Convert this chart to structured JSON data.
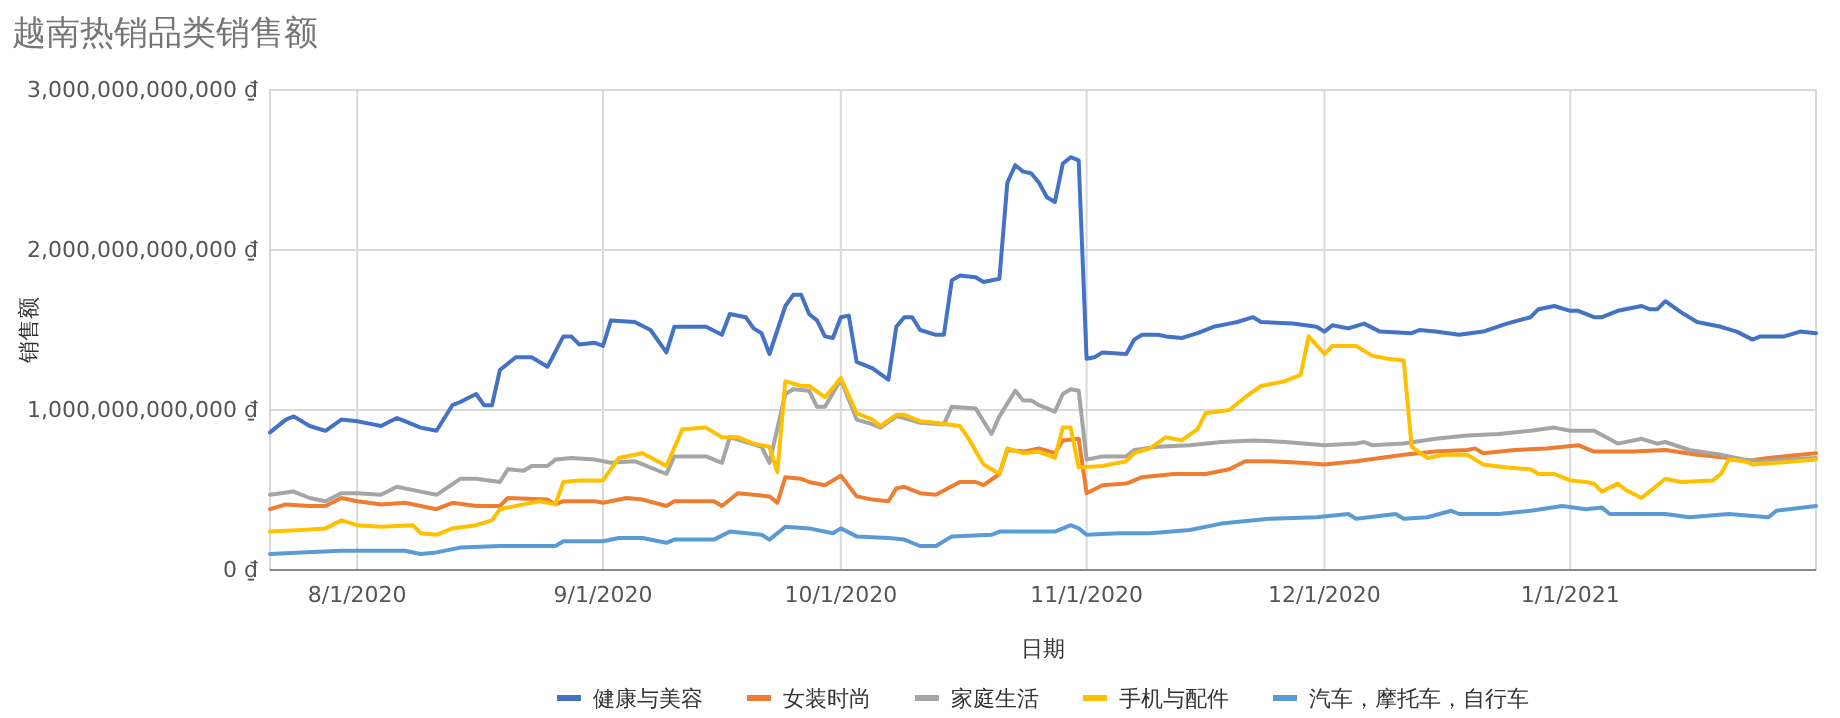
{
  "chart_data": {
    "type": "line",
    "title": "越南热销品类销售额",
    "xlabel": "日期",
    "ylabel": "销售额",
    "xlim": [
      "2020-07-21",
      "2021-02-01"
    ],
    "xticks": [
      {
        "value": "2020-08-01",
        "label": "8/1/2020"
      },
      {
        "value": "2020-09-01",
        "label": "9/1/2020"
      },
      {
        "value": "2020-10-01",
        "label": "10/1/2020"
      },
      {
        "value": "2020-11-01",
        "label": "11/1/2020"
      },
      {
        "value": "2020-12-01",
        "label": "12/1/2020"
      },
      {
        "value": "2021-01-01",
        "label": "1/1/2021"
      }
    ],
    "ylim": [
      0,
      3000000000000.0
    ],
    "yticks": [
      {
        "value": 0,
        "label": "0 ₫"
      },
      {
        "value": 1000000000000.0,
        "label": "1,000,000,000,000 ₫"
      },
      {
        "value": 2000000000000.0,
        "label": "2,000,000,000,000 ₫"
      },
      {
        "value": 3000000000000.0,
        "label": "3,000,000,000,000 ₫"
      }
    ],
    "grid": true,
    "legend": "bottom",
    "marker": "none",
    "line_style": "solid",
    "series": [
      {
        "name": "健康与美容",
        "color": "#4472c4",
        "x": [
          "2020-07-21",
          "2020-07-23",
          "2020-07-24",
          "2020-07-26",
          "2020-07-28",
          "2020-07-30",
          "2020-08-01",
          "2020-08-03",
          "2020-08-04",
          "2020-08-06",
          "2020-08-07",
          "2020-08-09",
          "2020-08-11",
          "2020-08-13",
          "2020-08-14",
          "2020-08-16",
          "2020-08-17",
          "2020-08-18",
          "2020-08-19",
          "2020-08-21",
          "2020-08-23",
          "2020-08-25",
          "2020-08-27",
          "2020-08-28",
          "2020-08-29",
          "2020-08-31",
          "2020-09-01",
          "2020-09-02",
          "2020-09-05",
          "2020-09-07",
          "2020-09-09",
          "2020-09-10",
          "2020-09-14",
          "2020-09-16",
          "2020-09-17",
          "2020-09-19",
          "2020-09-20",
          "2020-09-21",
          "2020-09-22",
          "2020-09-24",
          "2020-09-25",
          "2020-09-26",
          "2020-09-27",
          "2020-09-28",
          "2020-09-29",
          "2020-09-30",
          "2020-10-01",
          "2020-10-02",
          "2020-10-03",
          "2020-10-04",
          "2020-10-05",
          "2020-10-07",
          "2020-10-08",
          "2020-10-09",
          "2020-10-10",
          "2020-10-11",
          "2020-10-13",
          "2020-10-14",
          "2020-10-15",
          "2020-10-16",
          "2020-10-18",
          "2020-10-19",
          "2020-10-21",
          "2020-10-22",
          "2020-10-23",
          "2020-10-24",
          "2020-10-25",
          "2020-10-26",
          "2020-10-27",
          "2020-10-28",
          "2020-10-29",
          "2020-10-30",
          "2020-10-31",
          "2020-11-01",
          "2020-11-02",
          "2020-11-03",
          "2020-11-06",
          "2020-11-07",
          "2020-11-08",
          "2020-11-10",
          "2020-11-11",
          "2020-11-13",
          "2020-11-15",
          "2020-11-17",
          "2020-11-19",
          "2020-11-20",
          "2020-11-22",
          "2020-11-23",
          "2020-11-27",
          "2020-11-30",
          "2020-12-01",
          "2020-12-02",
          "2020-12-04",
          "2020-12-06",
          "2020-12-08",
          "2020-12-12",
          "2020-12-13",
          "2020-12-15",
          "2020-12-18",
          "2020-12-21",
          "2020-12-24",
          "2020-12-27",
          "2020-12-28",
          "2020-12-30",
          "2021-01-01",
          "2021-01-02",
          "2021-01-04",
          "2021-01-05",
          "2021-01-07",
          "2021-01-10",
          "2021-01-11",
          "2021-01-12",
          "2021-01-13",
          "2021-01-15",
          "2021-01-17",
          "2021-01-20",
          "2021-01-22",
          "2021-01-24",
          "2021-01-25",
          "2021-01-28",
          "2021-01-30",
          "2021-02-01"
        ],
        "values": [
          860000000000.0,
          940000000000.0,
          960000000000.0,
          900000000000.0,
          870000000000.0,
          940000000000.0,
          930000000000.0,
          910000000000.0,
          900000000000.0,
          950000000000.0,
          930000000000.0,
          890000000000.0,
          870000000000.0,
          1030000000000.0,
          1050000000000.0,
          1100000000000.0,
          1030000000000.0,
          1030000000000.0,
          1250000000000.0,
          1330000000000.0,
          1330000000000.0,
          1270000000000.0,
          1460000000000.0,
          1460000000000.0,
          1410000000000.0,
          1420000000000.0,
          1400000000000.0,
          1560000000000.0,
          1550000000000.0,
          1500000000000.0,
          1360000000000.0,
          1520000000000.0,
          1520000000000.0,
          1470000000000.0,
          1600000000000.0,
          1580000000000.0,
          1510000000000.0,
          1480000000000.0,
          1350000000000.0,
          1650000000000.0,
          1720000000000.0,
          1720000000000.0,
          1600000000000.0,
          1560000000000.0,
          1460000000000.0,
          1450000000000.0,
          1580000000000.0,
          1590000000000.0,
          1300000000000.0,
          1280000000000.0,
          1260000000000.0,
          1190000000000.0,
          1520000000000.0,
          1580000000000.0,
          1580000000000.0,
          1500000000000.0,
          1470000000000.0,
          1470000000000.0,
          1810000000000.0,
          1840000000000.0,
          1830000000000.0,
          1800000000000.0,
          1820000000000.0,
          2420000000000.0,
          2530000000000.0,
          2490000000000.0,
          2480000000000.0,
          2420000000000.0,
          2330000000000.0,
          2300000000000.0,
          2540000000000.0,
          2580000000000.0,
          2560000000000.0,
          1320000000000.0,
          1330000000000.0,
          1360000000000.0,
          1350000000000.0,
          1440000000000.0,
          1470000000000.0,
          1470000000000.0,
          1460000000000.0,
          1450000000000.0,
          1480000000000.0,
          1520000000000.0,
          1540000000000.0,
          1550000000000.0,
          1580000000000.0,
          1550000000000.0,
          1540000000000.0,
          1520000000000.0,
          1490000000000.0,
          1530000000000.0,
          1510000000000.0,
          1540000000000.0,
          1490000000000.0,
          1480000000000.0,
          1500000000000.0,
          1490000000000.0,
          1470000000000.0,
          1490000000000.0,
          1540000000000.0,
          1580000000000.0,
          1630000000000.0,
          1650000000000.0,
          1620000000000.0,
          1620000000000.0,
          1580000000000.0,
          1580000000000.0,
          1620000000000.0,
          1650000000000.0,
          1630000000000.0,
          1630000000000.0,
          1680000000000.0,
          1610000000000.0,
          1550000000000.0,
          1520000000000.0,
          1490000000000.0,
          1440000000000.0,
          1460000000000.0,
          1460000000000.0,
          1490000000000.0,
          1480000000000.0
        ]
      },
      {
        "name": "女装时尚",
        "color": "#ed7d31",
        "x": [
          "2020-07-21",
          "2020-07-23",
          "2020-07-26",
          "2020-07-28",
          "2020-07-30",
          "2020-08-01",
          "2020-08-04",
          "2020-08-07",
          "2020-08-11",
          "2020-08-13",
          "2020-08-16",
          "2020-08-19",
          "2020-08-20",
          "2020-08-25",
          "2020-08-26",
          "2020-08-27",
          "2020-08-31",
          "2020-09-01",
          "2020-09-04",
          "2020-09-06",
          "2020-09-09",
          "2020-09-10",
          "2020-09-15",
          "2020-09-16",
          "2020-09-18",
          "2020-09-20",
          "2020-09-22",
          "2020-09-23",
          "2020-09-24",
          "2020-09-26",
          "2020-09-27",
          "2020-09-29",
          "2020-10-01",
          "2020-10-03",
          "2020-10-05",
          "2020-10-07",
          "2020-10-08",
          "2020-10-09",
          "2020-10-11",
          "2020-10-13",
          "2020-10-16",
          "2020-10-18",
          "2020-10-19",
          "2020-10-21",
          "2020-10-22",
          "2020-10-24",
          "2020-10-26",
          "2020-10-28",
          "2020-10-29",
          "2020-10-31",
          "2020-11-01",
          "2020-11-03",
          "2020-11-06",
          "2020-11-08",
          "2020-11-12",
          "2020-11-16",
          "2020-11-19",
          "2020-11-21",
          "2020-11-24",
          "2020-11-28",
          "2020-12-01",
          "2020-12-05",
          "2020-12-08",
          "2020-12-11",
          "2020-12-15",
          "2020-12-19",
          "2020-12-20",
          "2020-12-21",
          "2020-12-25",
          "2020-12-29",
          "2021-01-02",
          "2021-01-04",
          "2021-01-09",
          "2021-01-13",
          "2021-01-17",
          "2021-01-21",
          "2021-01-23",
          "2021-01-26",
          "2021-01-30",
          "2021-02-01"
        ],
        "values": [
          380000000000.0,
          410000000000.0,
          400000000000.0,
          400000000000.0,
          450000000000.0,
          430000000000.0,
          410000000000.0,
          420000000000.0,
          380000000000.0,
          420000000000.0,
          400000000000.0,
          400000000000.0,
          450000000000.0,
          440000000000.0,
          410000000000.0,
          430000000000.0,
          430000000000.0,
          420000000000.0,
          450000000000.0,
          440000000000.0,
          400000000000.0,
          430000000000.0,
          430000000000.0,
          400000000000.0,
          480000000000.0,
          470000000000.0,
          460000000000.0,
          420000000000.0,
          580000000000.0,
          570000000000.0,
          550000000000.0,
          530000000000.0,
          590000000000.0,
          460000000000.0,
          440000000000.0,
          430000000000.0,
          510000000000.0,
          520000000000.0,
          480000000000.0,
          470000000000.0,
          550000000000.0,
          550000000000.0,
          530000000000.0,
          600000000000.0,
          750000000000.0,
          740000000000.0,
          760000000000.0,
          730000000000.0,
          810000000000.0,
          820000000000.0,
          480000000000.0,
          530000000000.0,
          540000000000.0,
          580000000000.0,
          600000000000.0,
          600000000000.0,
          630000000000.0,
          680000000000.0,
          680000000000.0,
          670000000000.0,
          660000000000.0,
          680000000000.0,
          700000000000.0,
          720000000000.0,
          740000000000.0,
          750000000000.0,
          760000000000.0,
          730000000000.0,
          750000000000.0,
          760000000000.0,
          780000000000.0,
          740000000000.0,
          740000000000.0,
          750000000000.0,
          720000000000.0,
          700000000000.0,
          680000000000.0,
          700000000000.0,
          720000000000.0,
          730000000000.0
        ]
      },
      {
        "name": "家庭生活",
        "color": "#a5a5a5",
        "x": [
          "2020-07-21",
          "2020-07-24",
          "2020-07-26",
          "2020-07-28",
          "2020-07-30",
          "2020-08-01",
          "2020-08-04",
          "2020-08-06",
          "2020-08-09",
          "2020-08-11",
          "2020-08-14",
          "2020-08-16",
          "2020-08-19",
          "2020-08-20",
          "2020-08-22",
          "2020-08-23",
          "2020-08-25",
          "2020-08-26",
          "2020-08-28",
          "2020-08-31",
          "2020-09-02",
          "2020-09-05",
          "2020-09-09",
          "2020-09-10",
          "2020-09-14",
          "2020-09-16",
          "2020-09-17",
          "2020-09-19",
          "2020-09-21",
          "2020-09-22",
          "2020-09-24",
          "2020-09-25",
          "2020-09-27",
          "2020-09-28",
          "2020-09-29",
          "2020-10-01",
          "2020-10-03",
          "2020-10-05",
          "2020-10-06",
          "2020-10-08",
          "2020-10-09",
          "2020-10-11",
          "2020-10-14",
          "2020-10-15",
          "2020-10-18",
          "2020-10-20",
          "2020-10-21",
          "2020-10-23",
          "2020-10-24",
          "2020-10-25",
          "2020-10-26",
          "2020-10-28",
          "2020-10-29",
          "2020-10-30",
          "2020-10-31",
          "2020-11-01",
          "2020-11-03",
          "2020-11-06",
          "2020-11-07",
          "2020-11-10",
          "2020-11-14",
          "2020-11-18",
          "2020-11-22",
          "2020-11-26",
          "2020-12-01",
          "2020-12-05",
          "2020-12-06",
          "2020-12-07",
          "2020-12-11",
          "2020-12-15",
          "2020-12-19",
          "2020-12-23",
          "2020-12-27",
          "2020-12-30",
          "2021-01-01",
          "2021-01-04",
          "2021-01-07",
          "2021-01-10",
          "2021-01-12",
          "2021-01-13",
          "2021-01-16",
          "2021-01-20",
          "2021-01-23",
          "2021-01-25",
          "2021-01-28",
          "2021-02-01"
        ],
        "values": [
          470000000000.0,
          490000000000.0,
          450000000000.0,
          430000000000.0,
          480000000000.0,
          480000000000.0,
          470000000000.0,
          520000000000.0,
          490000000000.0,
          470000000000.0,
          570000000000.0,
          570000000000.0,
          550000000000.0,
          630000000000.0,
          620000000000.0,
          650000000000.0,
          650000000000.0,
          690000000000.0,
          700000000000.0,
          690000000000.0,
          670000000000.0,
          680000000000.0,
          600000000000.0,
          710000000000.0,
          710000000000.0,
          670000000000.0,
          830000000000.0,
          800000000000.0,
          770000000000.0,
          670000000000.0,
          1100000000000.0,
          1130000000000.0,
          1120000000000.0,
          1020000000000.0,
          1020000000000.0,
          1190000000000.0,
          940000000000.0,
          910000000000.0,
          890000000000.0,
          960000000000.0,
          950000000000.0,
          920000000000.0,
          910000000000.0,
          1020000000000.0,
          1010000000000.0,
          850000000000.0,
          960000000000.0,
          1120000000000.0,
          1060000000000.0,
          1060000000000.0,
          1030000000000.0,
          990000000000.0,
          1100000000000.0,
          1130000000000.0,
          1120000000000.0,
          690000000000.0,
          710000000000.0,
          710000000000.0,
          750000000000.0,
          770000000000.0,
          780000000000.0,
          800000000000.0,
          810000000000.0,
          800000000000.0,
          780000000000.0,
          790000000000.0,
          800000000000.0,
          780000000000.0,
          790000000000.0,
          820000000000.0,
          840000000000.0,
          850000000000.0,
          870000000000.0,
          890000000000.0,
          870000000000.0,
          870000000000.0,
          790000000000.0,
          820000000000.0,
          790000000000.0,
          800000000000.0,
          750000000000.0,
          720000000000.0,
          690000000000.0,
          680000000000.0,
          690000000000.0,
          700000000000.0
        ]
      },
      {
        "name": "手机与配件",
        "color": "#ffc000",
        "x": [
          "2020-07-21",
          "2020-07-25",
          "2020-07-28",
          "2020-07-30",
          "2020-08-01",
          "2020-08-04",
          "2020-08-08",
          "2020-08-09",
          "2020-08-11",
          "2020-08-13",
          "2020-08-16",
          "2020-08-18",
          "2020-08-19",
          "2020-08-22",
          "2020-08-24",
          "2020-08-26",
          "2020-08-27",
          "2020-08-29",
          "2020-09-01",
          "2020-09-03",
          "2020-09-06",
          "2020-09-09",
          "2020-09-11",
          "2020-09-14",
          "2020-09-16",
          "2020-09-18",
          "2020-09-20",
          "2020-09-22",
          "2020-09-23",
          "2020-09-24",
          "2020-09-26",
          "2020-09-27",
          "2020-09-29",
          "2020-10-01",
          "2020-10-03",
          "2020-10-05",
          "2020-10-06",
          "2020-10-08",
          "2020-10-09",
          "2020-10-11",
          "2020-10-13",
          "2020-10-16",
          "2020-10-17",
          "2020-10-19",
          "2020-10-21",
          "2020-10-22",
          "2020-10-24",
          "2020-10-26",
          "2020-10-28",
          "2020-10-29",
          "2020-10-30",
          "2020-10-31",
          "2020-11-03",
          "2020-11-06",
          "2020-11-07",
          "2020-11-09",
          "2020-11-11",
          "2020-11-13",
          "2020-11-15",
          "2020-11-16",
          "2020-11-19",
          "2020-11-21",
          "2020-11-23",
          "2020-11-26",
          "2020-11-28",
          "2020-11-29",
          "2020-12-01",
          "2020-12-02",
          "2020-12-05",
          "2020-12-07",
          "2020-12-09",
          "2020-12-11",
          "2020-12-12",
          "2020-12-14",
          "2020-12-16",
          "2020-12-19",
          "2020-12-21",
          "2020-12-24",
          "2020-12-27",
          "2020-12-28",
          "2020-12-30",
          "2021-01-01",
          "2021-01-03",
          "2021-01-04",
          "2021-01-05",
          "2021-01-07",
          "2021-01-08",
          "2021-01-10",
          "2021-01-11",
          "2021-01-13",
          "2021-01-15",
          "2021-01-19",
          "2021-01-20",
          "2021-01-21",
          "2021-01-23",
          "2021-01-24",
          "2021-01-27",
          "2021-02-01"
        ],
        "values": [
          240000000000.0,
          250000000000.0,
          260000000000.0,
          310000000000.0,
          280000000000.0,
          270000000000.0,
          280000000000.0,
          230000000000.0,
          220000000000.0,
          260000000000.0,
          280000000000.0,
          310000000000.0,
          380000000000.0,
          410000000000.0,
          430000000000.0,
          410000000000.0,
          550000000000.0,
          560000000000.0,
          560000000000.0,
          700000000000.0,
          730000000000.0,
          650000000000.0,
          880000000000.0,
          890000000000.0,
          830000000000.0,
          830000000000.0,
          790000000000.0,
          770000000000.0,
          610000000000.0,
          1180000000000.0,
          1150000000000.0,
          1150000000000.0,
          1080000000000.0,
          1200000000000.0,
          980000000000.0,
          940000000000.0,
          900000000000.0,
          970000000000.0,
          970000000000.0,
          930000000000.0,
          920000000000.0,
          900000000000.0,
          830000000000.0,
          660000000000.0,
          600000000000.0,
          760000000000.0,
          730000000000.0,
          740000000000.0,
          700000000000.0,
          890000000000.0,
          890000000000.0,
          640000000000.0,
          650000000000.0,
          680000000000.0,
          730000000000.0,
          760000000000.0,
          830000000000.0,
          810000000000.0,
          880000000000.0,
          980000000000.0,
          1000000000000.0,
          1080000000000.0,
          1150000000000.0,
          1180000000000.0,
          1220000000000.0,
          1460000000000.0,
          1350000000000.0,
          1400000000000.0,
          1400000000000.0,
          1340000000000.0,
          1320000000000.0,
          1310000000000.0,
          770000000000.0,
          700000000000.0,
          720000000000.0,
          720000000000.0,
          660000000000.0,
          640000000000.0,
          630000000000.0,
          600000000000.0,
          600000000000.0,
          560000000000.0,
          550000000000.0,
          540000000000.0,
          490000000000.0,
          540000000000.0,
          500000000000.0,
          450000000000.0,
          490000000000.0,
          570000000000.0,
          550000000000.0,
          560000000000.0,
          600000000000.0,
          690000000000.0,
          680000000000.0,
          660000000000.0,
          670000000000.0,
          690000000000.0
        ]
      },
      {
        "name": "汽车，摩托车，自行车",
        "color": "#5b9bd5",
        "x": [
          "2020-07-21",
          "2020-07-25",
          "2020-07-30",
          "2020-08-05",
          "2020-08-07",
          "2020-08-09",
          "2020-08-11",
          "2020-08-14",
          "2020-08-19",
          "2020-08-26",
          "2020-08-27",
          "2020-09-01",
          "2020-09-03",
          "2020-09-06",
          "2020-09-09",
          "2020-09-10",
          "2020-09-15",
          "2020-09-17",
          "2020-09-21",
          "2020-09-22",
          "2020-09-24",
          "2020-09-27",
          "2020-09-30",
          "2020-10-01",
          "2020-10-03",
          "2020-10-07",
          "2020-10-09",
          "2020-10-11",
          "2020-10-13",
          "2020-10-15",
          "2020-10-20",
          "2020-10-21",
          "2020-10-26",
          "2020-10-28",
          "2020-10-30",
          "2020-10-31",
          "2020-11-01",
          "2020-11-05",
          "2020-11-09",
          "2020-11-14",
          "2020-11-18",
          "2020-11-24",
          "2020-11-30",
          "2020-12-04",
          "2020-12-05",
          "2020-12-10",
          "2020-12-11",
          "2020-12-14",
          "2020-12-17",
          "2020-12-18",
          "2020-12-23",
          "2020-12-27",
          "2020-12-31",
          "2021-01-03",
          "2021-01-05",
          "2021-01-06",
          "2021-01-10",
          "2021-01-13",
          "2021-01-16",
          "2021-01-21",
          "2021-01-26",
          "2021-01-27",
          "2021-02-01"
        ],
        "values": [
          100000000000.0,
          110000000000.0,
          120000000000.0,
          120000000000.0,
          120000000000.0,
          100000000000.0,
          110000000000.0,
          140000000000.0,
          150000000000.0,
          150000000000.0,
          180000000000.0,
          180000000000.0,
          200000000000.0,
          200000000000.0,
          170000000000.0,
          190000000000.0,
          190000000000.0,
          240000000000.0,
          220000000000.0,
          190000000000.0,
          270000000000.0,
          260000000000.0,
          230000000000.0,
          260000000000.0,
          210000000000.0,
          200000000000.0,
          190000000000.0,
          150000000000.0,
          150000000000.0,
          210000000000.0,
          220000000000.0,
          240000000000.0,
          240000000000.0,
          240000000000.0,
          280000000000.0,
          260000000000.0,
          220000000000.0,
          230000000000.0,
          230000000000.0,
          250000000000.0,
          290000000000.0,
          320000000000.0,
          330000000000.0,
          350000000000.0,
          320000000000.0,
          350000000000.0,
          320000000000.0,
          330000000000.0,
          370000000000.0,
          350000000000.0,
          350000000000.0,
          370000000000.0,
          400000000000.0,
          380000000000.0,
          390000000000.0,
          350000000000.0,
          350000000000.0,
          350000000000.0,
          330000000000.0,
          350000000000.0,
          330000000000.0,
          370000000000.0,
          400000000000.0
        ]
      }
    ]
  }
}
